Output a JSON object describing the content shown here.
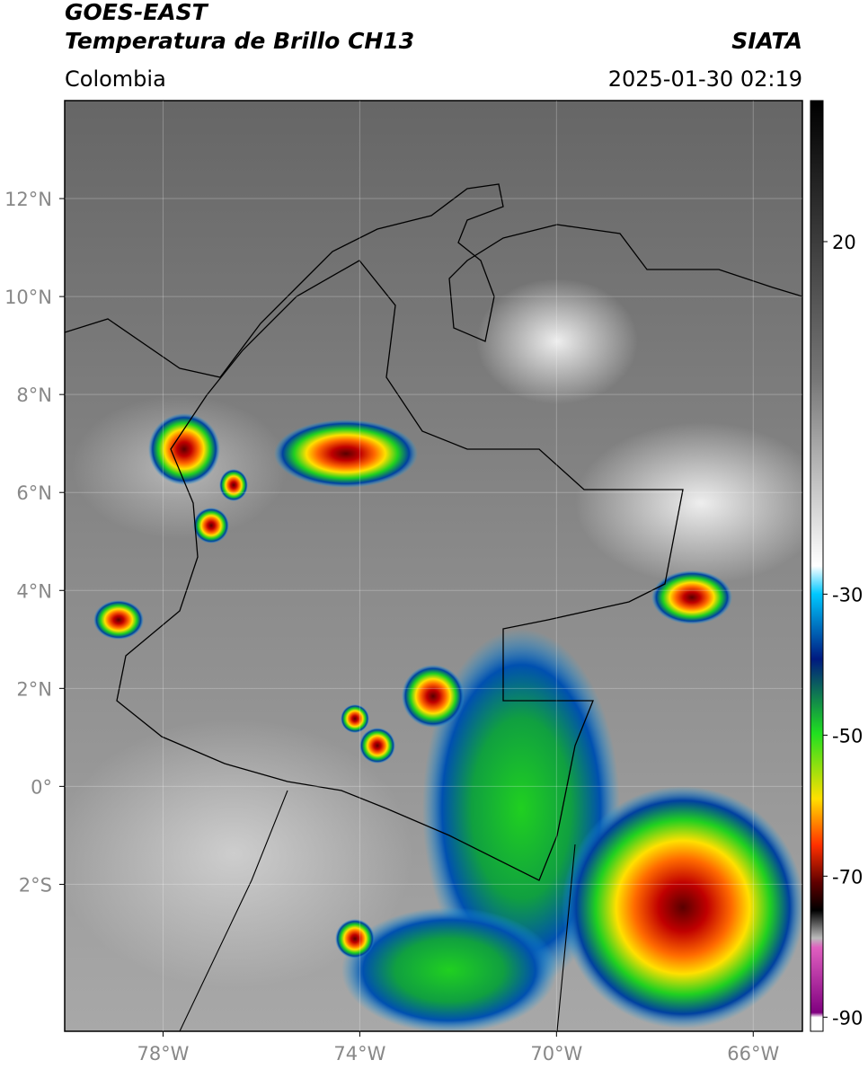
{
  "header": {
    "title": "GOES-EAST",
    "subtitle": "Temperatura de Brillo CH13",
    "source": "SIATA",
    "region": "Colombia",
    "datetime": "2025-01-30 02:19"
  },
  "map": {
    "xlim": [
      -80,
      -65
    ],
    "ylim": [
      -5,
      14
    ],
    "xticks": [
      {
        "value": -78,
        "label": "78°W"
      },
      {
        "value": -74,
        "label": "74°W"
      },
      {
        "value": -70,
        "label": "70°W"
      },
      {
        "value": -66,
        "label": "66°W"
      }
    ],
    "yticks": [
      {
        "value": 12,
        "label": "12°N"
      },
      {
        "value": 10,
        "label": "10°N"
      },
      {
        "value": 8,
        "label": "8°N"
      },
      {
        "value": 6,
        "label": "6°N"
      },
      {
        "value": 4,
        "label": "4°N"
      },
      {
        "value": 2,
        "label": "2°N"
      },
      {
        "value": 0,
        "label": "0°"
      },
      {
        "value": -2,
        "label": "2°S"
      }
    ],
    "colorbar": {
      "lim": [
        -92,
        40
      ],
      "ticks": [
        20,
        -30,
        -50,
        -70,
        -90
      ]
    }
  }
}
